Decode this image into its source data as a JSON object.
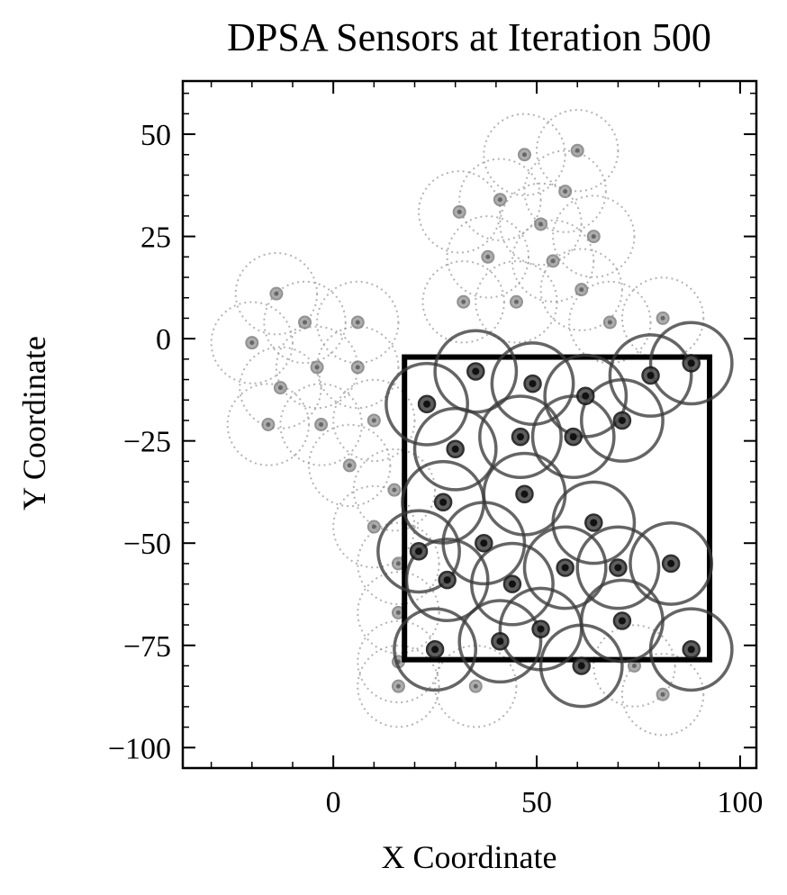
{
  "chart_data": {
    "type": "scatter",
    "title": "DPSA Sensors at Iteration 500",
    "xlabel": "X Coordinate",
    "ylabel": "Y Coordinate",
    "xlim": [
      -37,
      104
    ],
    "ylim": [
      -105,
      63
    ],
    "xticks": [
      0,
      50,
      100
    ],
    "yticks": [
      50,
      25,
      0,
      -25,
      -50,
      -75,
      -100
    ],
    "xtick_labels": [
      "0",
      "50",
      "100"
    ],
    "ytick_labels": [
      "50",
      "25",
      "0",
      "−25",
      "−50",
      "−75",
      "−100"
    ],
    "grid": false,
    "region": {
      "x0": 17.5,
      "y0": -78.5,
      "x1": 92.5,
      "y1": -4.5
    },
    "sensing_radius": 10,
    "colors": {
      "active": "#1a1a1a",
      "history": "#999999",
      "region": "#000000"
    },
    "series": [
      {
        "points": [
          {
            "x": 35,
            "y": -8
          },
          {
            "x": 49,
            "y": -11
          },
          {
            "x": 62,
            "y": -14
          },
          {
            "x": 78,
            "y": -9
          },
          {
            "x": 88,
            "y": -6
          },
          {
            "x": 23,
            "y": -16
          },
          {
            "x": 71,
            "y": -20
          },
          {
            "x": 30,
            "y": -27
          },
          {
            "x": 46,
            "y": -24
          },
          {
            "x": 59,
            "y": -24
          },
          {
            "x": 27,
            "y": -40
          },
          {
            "x": 47,
            "y": -38
          },
          {
            "x": 64,
            "y": -45
          },
          {
            "x": 21,
            "y": -52
          },
          {
            "x": 37,
            "y": -50
          },
          {
            "x": 28,
            "y": -59
          },
          {
            "x": 44,
            "y": -60
          },
          {
            "x": 57,
            "y": -56
          },
          {
            "x": 70,
            "y": -56
          },
          {
            "x": 83,
            "y": -55
          },
          {
            "x": 25,
            "y": -76
          },
          {
            "x": 41,
            "y": -74
          },
          {
            "x": 51,
            "y": -71
          },
          {
            "x": 71,
            "y": -69
          },
          {
            "x": 61,
            "y": -80
          },
          {
            "x": 88,
            "y": -76
          }
        ]
      },
      {
        "points": [
          {
            "x": 47,
            "y": 45
          },
          {
            "x": 60,
            "y": 46
          },
          {
            "x": 31,
            "y": 31
          },
          {
            "x": 41,
            "y": 34
          },
          {
            "x": 57,
            "y": 36
          },
          {
            "x": 51,
            "y": 28
          },
          {
            "x": 64,
            "y": 25
          },
          {
            "x": 38,
            "y": 20
          },
          {
            "x": 54,
            "y": 19
          },
          {
            "x": 32,
            "y": 9
          },
          {
            "x": 45,
            "y": 9
          },
          {
            "x": 61,
            "y": 12
          },
          {
            "x": 68,
            "y": 4
          },
          {
            "x": 81,
            "y": 5
          },
          {
            "x": -14,
            "y": 11
          },
          {
            "x": -7,
            "y": 4
          },
          {
            "x": 6,
            "y": 4
          },
          {
            "x": -20,
            "y": -1
          },
          {
            "x": -4,
            "y": -7
          },
          {
            "x": 6,
            "y": -7
          },
          {
            "x": -13,
            "y": -12
          },
          {
            "x": -16,
            "y": -21
          },
          {
            "x": -3,
            "y": -21
          },
          {
            "x": 10,
            "y": -20
          },
          {
            "x": 4,
            "y": -31
          },
          {
            "x": 15,
            "y": -37
          },
          {
            "x": 10,
            "y": -46
          },
          {
            "x": 16,
            "y": -55
          },
          {
            "x": 16,
            "y": -67
          },
          {
            "x": 16,
            "y": -79
          },
          {
            "x": 16,
            "y": -85
          },
          {
            "x": 35,
            "y": -85
          },
          {
            "x": 74,
            "y": -80
          },
          {
            "x": 81,
            "y": -87
          }
        ]
      }
    ]
  }
}
